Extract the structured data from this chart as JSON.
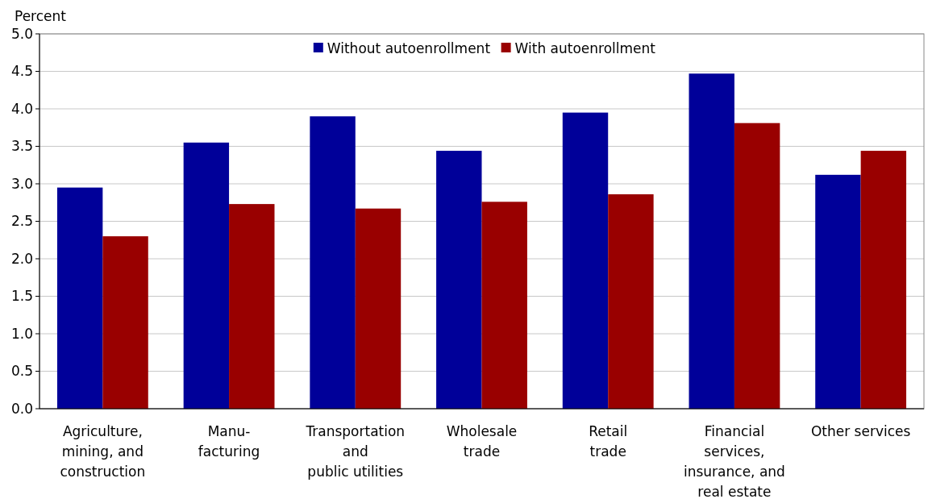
{
  "chart_data": {
    "type": "bar",
    "ylabel": "Percent",
    "categories": [
      "Agriculture,\nmining, and\nconstruction",
      "Manu-\nfacturing",
      "Transportation\nand\npublic utilities",
      "Wholesale\ntrade",
      "Retail\ntrade",
      "Financial\nservices,\ninsurance, and\nreal estate",
      "Other services"
    ],
    "series": [
      {
        "name": "Without autoenrollment",
        "color": "#000099",
        "values": [
          2.95,
          3.55,
          3.9,
          3.44,
          3.95,
          4.47,
          3.12
        ]
      },
      {
        "name": "With autoenrollment",
        "color": "#990000",
        "values": [
          2.3,
          2.73,
          2.67,
          2.76,
          2.86,
          3.81,
          3.44
        ]
      }
    ],
    "ylim": [
      0,
      5
    ],
    "yticks": [
      {
        "value": 0,
        "label": "0.0"
      },
      {
        "value": 0.5,
        "label": "0.5"
      },
      {
        "value": 1,
        "label": "1.0"
      },
      {
        "value": 1.5,
        "label": "1.5"
      },
      {
        "value": 2,
        "label": "2.0"
      },
      {
        "value": 2.5,
        "label": "2.5"
      },
      {
        "value": 3,
        "label": "3.0"
      },
      {
        "value": 3.5,
        "label": "3.5"
      },
      {
        "value": 4,
        "label": "4.0"
      },
      {
        "value": 4.5,
        "label": "4.5"
      },
      {
        "value": 5,
        "label": "5.0"
      }
    ],
    "grid": "y",
    "legend": "top"
  }
}
